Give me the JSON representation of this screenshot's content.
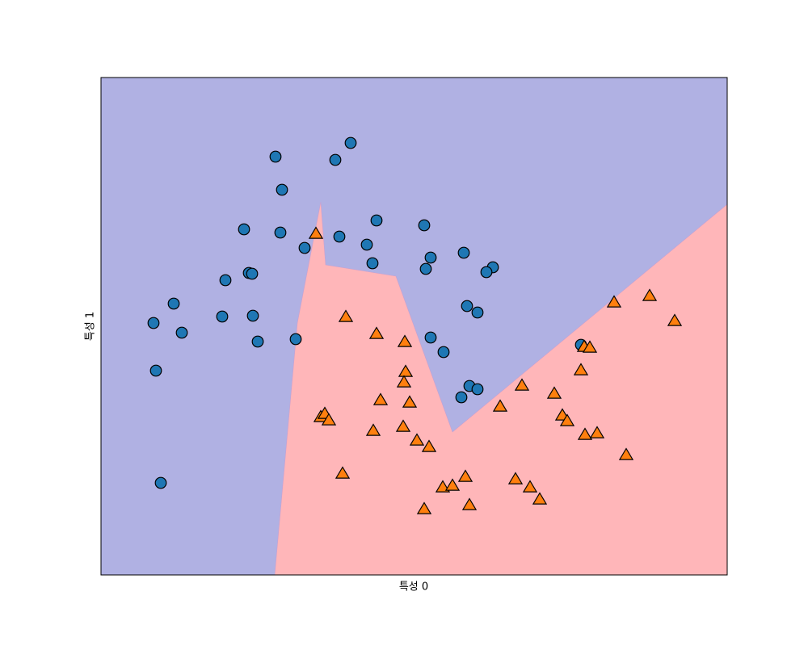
{
  "chart_data": {
    "type": "scatter",
    "x_label": "특성 0",
    "y_label": "특성 1",
    "xlim": [
      0,
      7.75
    ],
    "ylim": [
      0,
      6.16
    ],
    "region_colors": [
      "#b0b1e3",
      "#ffb6b9"
    ],
    "decision_region": {
      "x": [
        2.15,
        2.43,
        2.72,
        2.78,
        3.65,
        4.35,
        7.75,
        7.75
      ],
      "y": [
        0,
        3.12,
        4.62,
        3.84,
        3.7,
        1.77,
        4.59,
        0
      ]
    },
    "series": [
      {
        "color": "#1f77b4",
        "marker": "circle",
        "x": [
          2.16,
          3.09,
          2.9,
          2.24,
          1.77,
          2.22,
          2.95,
          3.41,
          4.0,
          2.52,
          3.29,
          3.36,
          4.08,
          4.02,
          4.49,
          4.85,
          4.77,
          1.54,
          1.83,
          1.87,
          0.9,
          0.65,
          1.0,
          1.5,
          1.88,
          1.94,
          2.41,
          4.53,
          4.66,
          4.08,
          4.24,
          0.68,
          4.56,
          4.66,
          4.46,
          5.94,
          0.74
        ],
        "values": [
          5.18,
          5.35,
          5.14,
          4.77,
          4.28,
          4.24,
          4.19,
          4.39,
          4.33,
          4.05,
          4.09,
          3.86,
          3.93,
          3.79,
          3.99,
          3.81,
          3.75,
          3.65,
          3.74,
          3.73,
          3.36,
          3.12,
          3.0,
          3.2,
          3.21,
          2.89,
          2.92,
          3.33,
          3.25,
          2.94,
          2.76,
          2.53,
          2.34,
          2.3,
          2.2,
          2.85,
          1.14
        ]
      },
      {
        "color": "#ff7f0e",
        "marker": "triangle",
        "x": [
          2.66,
          3.03,
          3.41,
          3.76,
          3.77,
          3.75,
          3.46,
          3.82,
          2.72,
          2.77,
          2.82,
          3.37,
          3.74,
          3.91,
          4.06,
          2.99,
          4.23,
          4.35,
          4.51,
          4.0,
          4.56,
          4.94,
          5.21,
          5.13,
          5.31,
          5.43,
          5.61,
          5.71,
          5.77,
          5.94,
          5.98,
          6.05,
          5.99,
          6.14,
          6.35,
          6.5,
          6.79,
          7.1
        ],
        "values": [
          4.22,
          3.19,
          2.98,
          2.88,
          2.51,
          2.38,
          2.16,
          2.13,
          1.95,
          1.99,
          1.91,
          1.78,
          1.83,
          1.66,
          1.58,
          1.25,
          1.08,
          1.1,
          1.21,
          0.81,
          0.86,
          2.08,
          2.34,
          1.18,
          1.08,
          0.93,
          2.24,
          1.97,
          1.9,
          2.53,
          2.82,
          2.81,
          1.73,
          1.75,
          3.37,
          1.48,
          3.45,
          3.14
        ]
      }
    ]
  }
}
